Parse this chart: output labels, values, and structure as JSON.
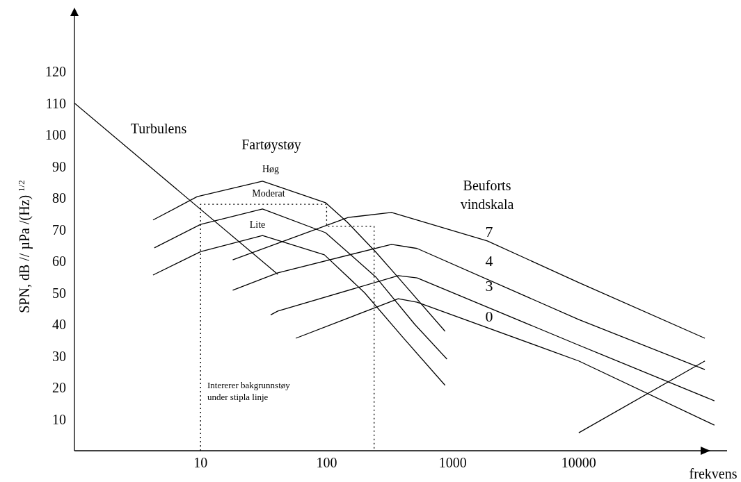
{
  "chart_data": {
    "type": "line",
    "xlabel": "frekvens",
    "ylabel": "SPN, dB // µPa /(Hz) $^{1/2}$",
    "log": "x",
    "xlim": [
      1,
      150000
    ],
    "xticks": [
      10,
      100,
      1000,
      10000
    ],
    "ylim": [
      0,
      138
    ],
    "yticks": [
      10,
      20,
      30,
      40,
      50,
      60,
      70,
      80,
      90,
      100,
      110,
      120
    ],
    "grid": false,
    "marker": "none",
    "series": [
      {
        "color": "#000000",
        "x": [
          1,
          41
        ],
        "values": [
          110,
          55.8
        ]
      },
      {
        "color": "#000000",
        "x": [
          4.2,
          9.4,
          31,
          98,
          146,
          245,
          372,
          870
        ],
        "values": [
          73,
          80.4,
          85.3,
          78.5,
          72.3,
          62.9,
          54.7,
          37.8
        ]
      },
      {
        "color": "#000000",
        "x": [
          4.3,
          10,
          31,
          98,
          245,
          500,
          900
        ],
        "values": [
          64.2,
          71.6,
          76.5,
          69,
          55,
          40,
          29
        ]
      },
      {
        "color": "#000000",
        "x": [
          4.2,
          10,
          31,
          96,
          200,
          400,
          870
        ],
        "values": [
          55.6,
          63,
          68.1,
          62,
          50,
          36,
          20.7
        ]
      },
      {
        "color": "#000000",
        "x": [
          18,
          148,
          327,
          1880,
          10000,
          100000
        ],
        "values": [
          60.4,
          73.8,
          75.4,
          66.4,
          53.2,
          35.6
        ]
      },
      {
        "color": "#000000",
        "x": [
          18,
          41,
          327,
          522,
          10000,
          100000
        ],
        "values": [
          50.8,
          56.3,
          65.3,
          64,
          41.5,
          25.7
        ]
      },
      {
        "color": "#000000",
        "x": [
          36,
          41,
          370,
          522,
          10000,
          119000
        ],
        "values": [
          43,
          44.2,
          55.4,
          54.7,
          33.4,
          15.8
        ]
      },
      {
        "color": "#000000",
        "x": [
          57,
          370,
          522,
          10000,
          119000
        ],
        "values": [
          35.6,
          48.1,
          47,
          28.4,
          8.1
        ]
      },
      {
        "color": "#000000",
        "x": [
          10000,
          100000
        ],
        "values": [
          5.7,
          28.4
        ]
      },
      {
        "color": "#000000",
        "line_style": "dotted",
        "x": [
          10,
          10,
          100,
          100,
          238,
          238
        ],
        "values": [
          0,
          78,
          78,
          71,
          71,
          0
        ]
      }
    ],
    "annotations": [
      "Turbulens",
      "Fartøystøy",
      "Høg",
      "Moderat",
      "Lite",
      "Beuforts\nvindskala",
      "7",
      "4",
      "3",
      "0",
      "Intererer bakgrunnstøy\nunder stipla linje"
    ]
  }
}
